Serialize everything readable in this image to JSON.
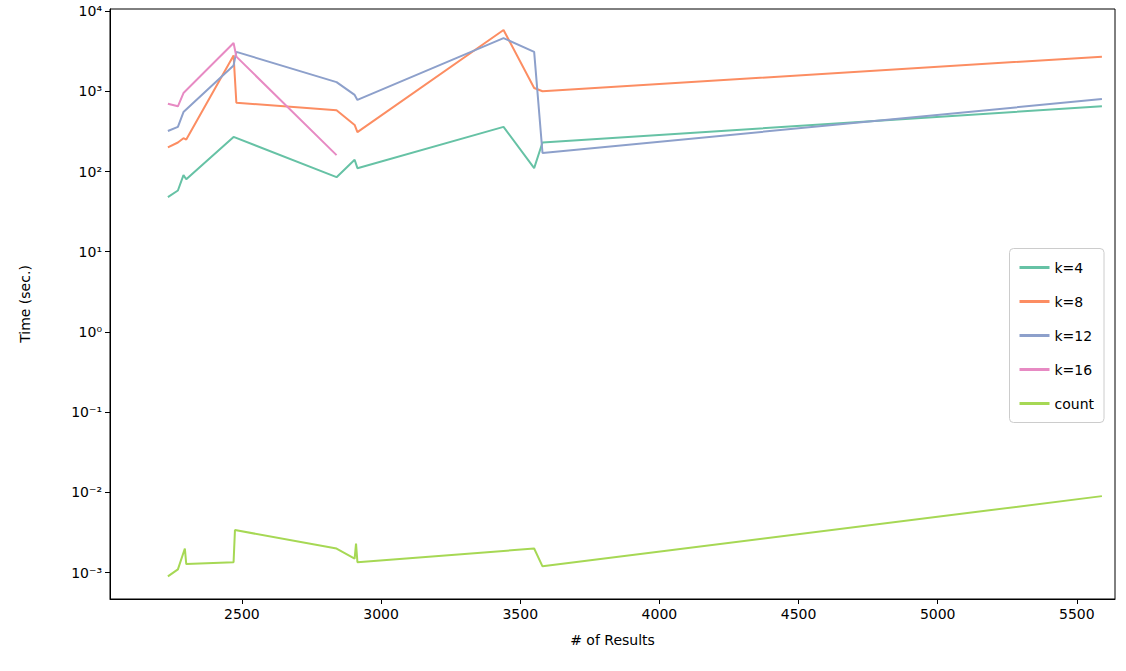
{
  "chart_data": {
    "type": "line",
    "x_label": "# of Results",
    "y_label": "Time (sec.)",
    "log": "y",
    "grid": false,
    "legend": "right",
    "xlim": [
      2026,
      5637
    ],
    "xticks": [
      2500,
      3000,
      3500,
      4000,
      4500,
      5000,
      5500
    ],
    "ylim": [
      0.00047,
      10600
    ],
    "yticks": [
      {
        "value": 0.001,
        "label": "10⁻³"
      },
      {
        "value": 0.01,
        "label": "10⁻²"
      },
      {
        "value": 0.1,
        "label": "10⁻¹"
      },
      {
        "value": 1,
        "label": "10⁰"
      },
      {
        "value": 10,
        "label": "10¹"
      },
      {
        "value": 100,
        "label": "10²"
      },
      {
        "value": 1000,
        "label": "10³"
      },
      {
        "value": 10000,
        "label": "10⁴"
      }
    ],
    "series": [
      {
        "name": "k=4",
        "color": "#66c2a5",
        "x": [
          2234,
          2270,
          2290,
          2300,
          2470,
          2840,
          2905,
          2915,
          3440,
          3550,
          3580,
          5590
        ],
        "values": [
          48,
          58,
          90,
          80,
          270,
          85,
          140,
          110,
          360,
          110,
          230,
          650
        ]
      },
      {
        "name": "k=8",
        "color": "#fc8d62",
        "x": [
          2234,
          2270,
          2290,
          2300,
          2470,
          2480,
          2840,
          2905,
          2915,
          3440,
          3550,
          3580,
          5590
        ],
        "values": [
          200,
          230,
          260,
          250,
          2800,
          720,
          580,
          380,
          310,
          5800,
          1100,
          1000,
          2700
        ]
      },
      {
        "name": "k=12",
        "color": "#8da0cb",
        "x": [
          2234,
          2270,
          2290,
          2470,
          2480,
          2840,
          2905,
          2915,
          3440,
          3550,
          3580,
          5590
        ],
        "values": [
          320,
          360,
          550,
          2100,
          3100,
          1300,
          900,
          780,
          4600,
          3100,
          170,
          800
        ]
      },
      {
        "name": "k=16",
        "color": "#e78ac3",
        "x": [
          2234,
          2270,
          2290,
          2470,
          2480,
          2840
        ],
        "values": [
          700,
          650,
          950,
          4000,
          2700,
          160
        ]
      },
      {
        "name": "count",
        "color": "#a6d854",
        "x": [
          2234,
          2270,
          2295,
          2300,
          2470,
          2475,
          2840,
          2905,
          2910,
          2915,
          3550,
          3580,
          5590
        ],
        "values": [
          0.0009,
          0.0011,
          0.002,
          0.00128,
          0.00135,
          0.0034,
          0.002,
          0.0015,
          0.0023,
          0.00135,
          0.002,
          0.0012,
          0.009
        ]
      }
    ]
  }
}
